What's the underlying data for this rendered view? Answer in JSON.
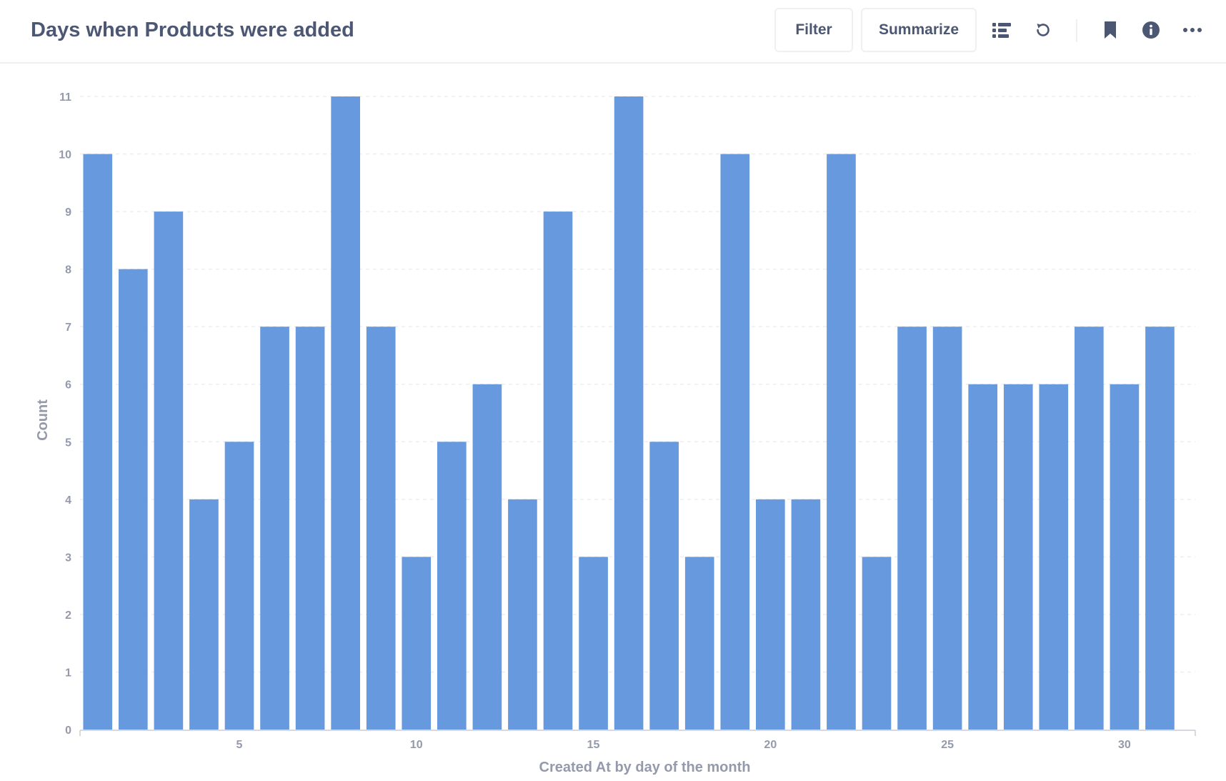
{
  "header": {
    "title": "Days when Products were added",
    "filter_label": "Filter",
    "summarize_label": "Summarize"
  },
  "icons": {
    "view_toggle": "list-icon",
    "refresh": "refresh-icon",
    "bookmark": "bookmark-icon",
    "info": "info-icon",
    "more": "ellipsis-icon"
  },
  "colors": {
    "bar": "#6699dd",
    "text": "#4c5773",
    "axis_text": "#949aab",
    "grid": "#eceef1",
    "border": "#eef0f3"
  },
  "chart_data": {
    "type": "bar",
    "x": [
      1,
      2,
      3,
      4,
      5,
      6,
      7,
      8,
      9,
      10,
      11,
      12,
      13,
      14,
      15,
      16,
      17,
      18,
      19,
      20,
      21,
      22,
      23,
      24,
      25,
      26,
      27,
      28,
      29,
      30,
      31
    ],
    "values": [
      10,
      8,
      9,
      4,
      5,
      7,
      7,
      11,
      7,
      3,
      5,
      6,
      4,
      9,
      3,
      11,
      5,
      3,
      10,
      4,
      4,
      10,
      3,
      7,
      7,
      6,
      6,
      6,
      7,
      6,
      7
    ],
    "xlabel": "Created At by day of the month",
    "ylabel": "Count",
    "x_ticks": [
      5,
      10,
      15,
      20,
      25,
      30
    ],
    "y_ticks": [
      0,
      1,
      2,
      3,
      4,
      5,
      6,
      7,
      8,
      9,
      10,
      11
    ],
    "ylim": [
      0,
      11
    ],
    "xlim": [
      0.5,
      32
    ],
    "grid": true,
    "legend": false
  }
}
